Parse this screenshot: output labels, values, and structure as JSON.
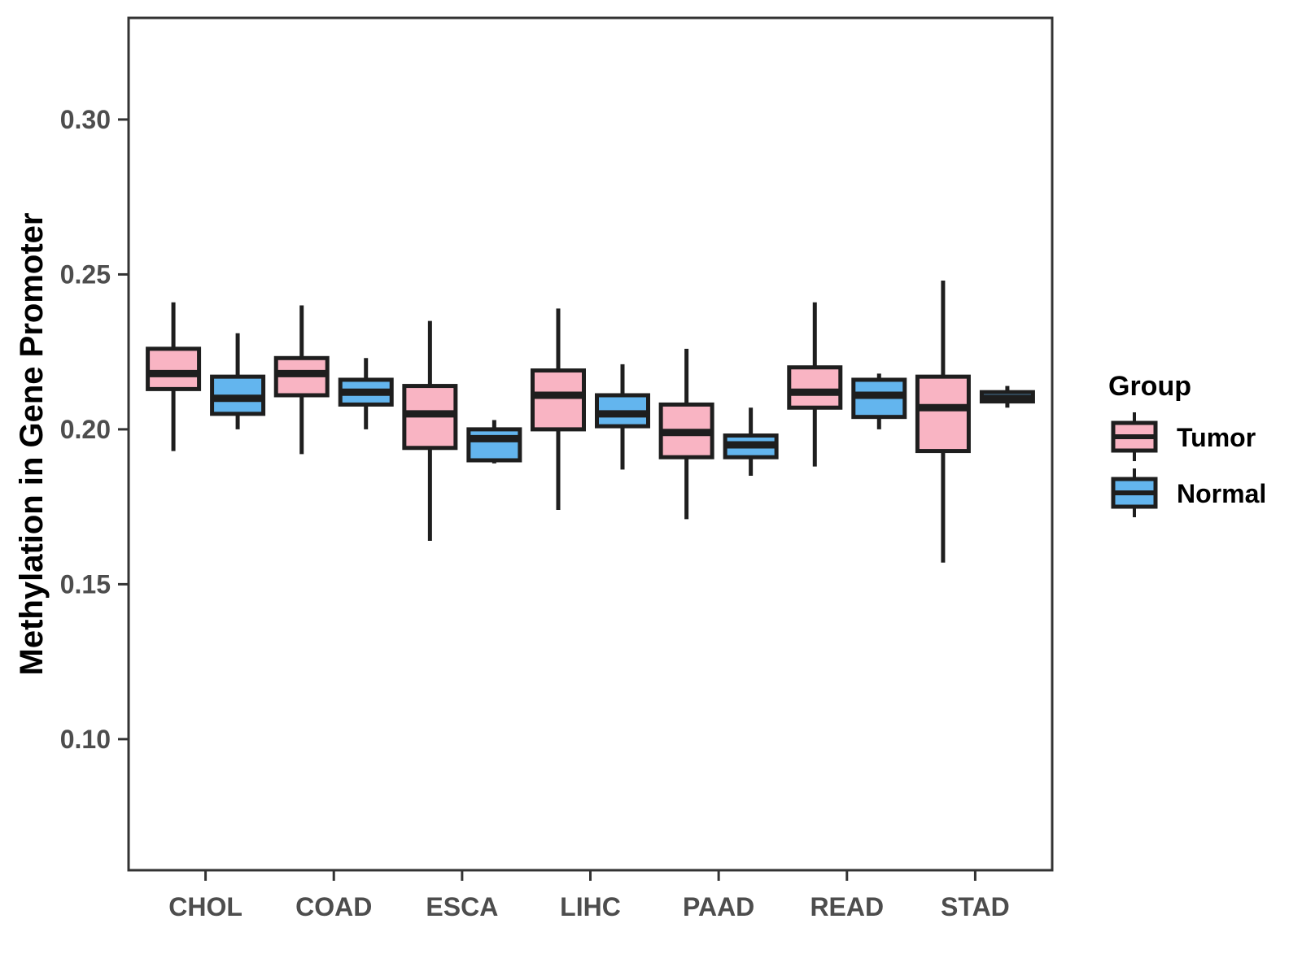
{
  "chart_data": {
    "type": "boxplot",
    "title": "",
    "xlabel": "",
    "ylabel": "Methylation in Gene Promoter",
    "categories": [
      "CHOL",
      "COAD",
      "ESCA",
      "LIHC",
      "PAAD",
      "READ",
      "STAD"
    ],
    "y_axis": {
      "ticks": [
        {
          "value": 0.1,
          "label": "0.10"
        },
        {
          "value": 0.15,
          "label": "0.15"
        },
        {
          "value": 0.2,
          "label": "0.20"
        },
        {
          "value": 0.25,
          "label": "0.25"
        },
        {
          "value": 0.3,
          "label": "0.30"
        }
      ],
      "ylim": [
        0.0577,
        0.3328
      ],
      "grid": false
    },
    "legend": {
      "title": "Group",
      "position": "right",
      "entries": [
        {
          "label": "Tumor",
          "fill": "#F9B4C3"
        },
        {
          "label": "Normal",
          "fill": "#63B5EE"
        }
      ]
    },
    "series": [
      {
        "name": "Tumor",
        "fill": "#F9B4C3",
        "boxes": [
          {
            "category": "CHOL",
            "whisker_low": 0.193,
            "q1": 0.213,
            "median": 0.218,
            "q3": 0.226,
            "whisker_high": 0.241
          },
          {
            "category": "COAD",
            "whisker_low": 0.192,
            "q1": 0.211,
            "median": 0.218,
            "q3": 0.223,
            "whisker_high": 0.24
          },
          {
            "category": "ESCA",
            "whisker_low": 0.164,
            "q1": 0.194,
            "median": 0.205,
            "q3": 0.214,
            "whisker_high": 0.235
          },
          {
            "category": "LIHC",
            "whisker_low": 0.174,
            "q1": 0.2,
            "median": 0.211,
            "q3": 0.219,
            "whisker_high": 0.239
          },
          {
            "category": "PAAD",
            "whisker_low": 0.171,
            "q1": 0.191,
            "median": 0.199,
            "q3": 0.208,
            "whisker_high": 0.226
          },
          {
            "category": "READ",
            "whisker_low": 0.188,
            "q1": 0.207,
            "median": 0.212,
            "q3": 0.22,
            "whisker_high": 0.241
          },
          {
            "category": "STAD",
            "whisker_low": 0.157,
            "q1": 0.193,
            "median": 0.207,
            "q3": 0.217,
            "whisker_high": 0.248
          }
        ]
      },
      {
        "name": "Normal",
        "fill": "#63B5EE",
        "boxes": [
          {
            "category": "CHOL",
            "whisker_low": 0.2,
            "q1": 0.205,
            "median": 0.21,
            "q3": 0.217,
            "whisker_high": 0.231
          },
          {
            "category": "COAD",
            "whisker_low": 0.2,
            "q1": 0.208,
            "median": 0.212,
            "q3": 0.216,
            "whisker_high": 0.223
          },
          {
            "category": "ESCA",
            "whisker_low": 0.189,
            "q1": 0.19,
            "median": 0.197,
            "q3": 0.2,
            "whisker_high": 0.203
          },
          {
            "category": "LIHC",
            "whisker_low": 0.187,
            "q1": 0.201,
            "median": 0.205,
            "q3": 0.211,
            "whisker_high": 0.221
          },
          {
            "category": "PAAD",
            "whisker_low": 0.185,
            "q1": 0.191,
            "median": 0.195,
            "q3": 0.198,
            "whisker_high": 0.207
          },
          {
            "category": "READ",
            "whisker_low": 0.2,
            "q1": 0.204,
            "median": 0.211,
            "q3": 0.216,
            "whisker_high": 0.218
          },
          {
            "category": "STAD",
            "whisker_low": 0.207,
            "q1": 0.209,
            "median": 0.21,
            "q3": 0.212,
            "whisker_high": 0.214
          }
        ]
      }
    ],
    "style_colors": {
      "box_stroke": "#1E1E1E",
      "panel_border": "#333333",
      "tick_text": "#4D4D4D",
      "title_text": "#000000"
    }
  }
}
